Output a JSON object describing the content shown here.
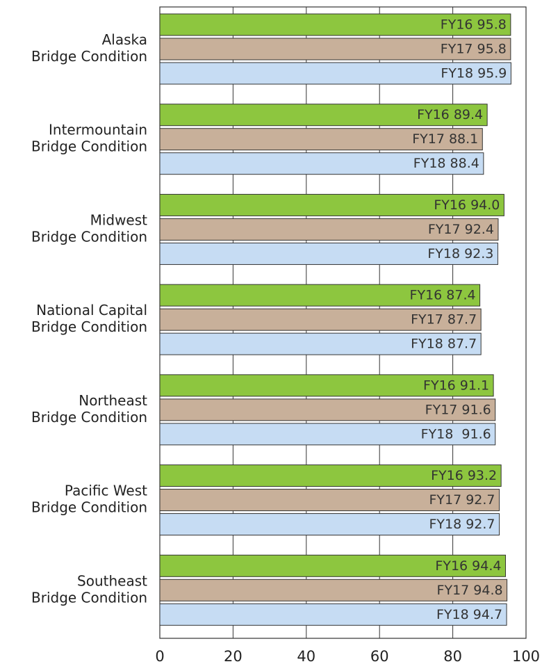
{
  "chart_data": {
    "type": "hbar",
    "categories": [
      "Alaska\nBridge Condition",
      "Intermountain\nBridge Condition",
      "Midwest\nBridge Condition",
      "National Capital\nBridge Condition",
      "Northeast\nBridge Condition",
      "Pacific West\nBridge Condition",
      "Southeast\nBridge Condition"
    ],
    "series": [
      {
        "color": "#8dc63f",
        "values": [
          95.8,
          89.4,
          94.0,
          87.4,
          91.1,
          93.2,
          94.4
        ],
        "value_labels": [
          "FY16 95.8",
          "FY16 89.4",
          "FY16 94.0",
          "FY16 87.4",
          "FY16 91.1",
          "FY16 93.2",
          "FY16 94.4"
        ]
      },
      {
        "color": "#c8b09a",
        "values": [
          95.8,
          88.1,
          92.4,
          87.7,
          91.6,
          92.7,
          94.8
        ],
        "value_labels": [
          "FY17 95.8",
          "FY17 88.1",
          "FY17 92.4",
          "FY17 87.7",
          "FY17 91.6",
          "FY17 92.7",
          "FY17 94.8"
        ]
      },
      {
        "color": "#c6dcf3",
        "values": [
          95.9,
          88.4,
          92.3,
          87.7,
          91.6,
          92.7,
          94.7
        ],
        "value_labels": [
          "FY18 95.9",
          "FY18 88.4",
          "FY18 92.3",
          "FY18 87.7",
          "FY18  91.6",
          "FY18 92.7",
          "FY18 94.7"
        ]
      }
    ],
    "xlim": [
      0,
      100
    ],
    "xticks": [
      0,
      20,
      40,
      60,
      80,
      100
    ],
    "grid": true
  }
}
